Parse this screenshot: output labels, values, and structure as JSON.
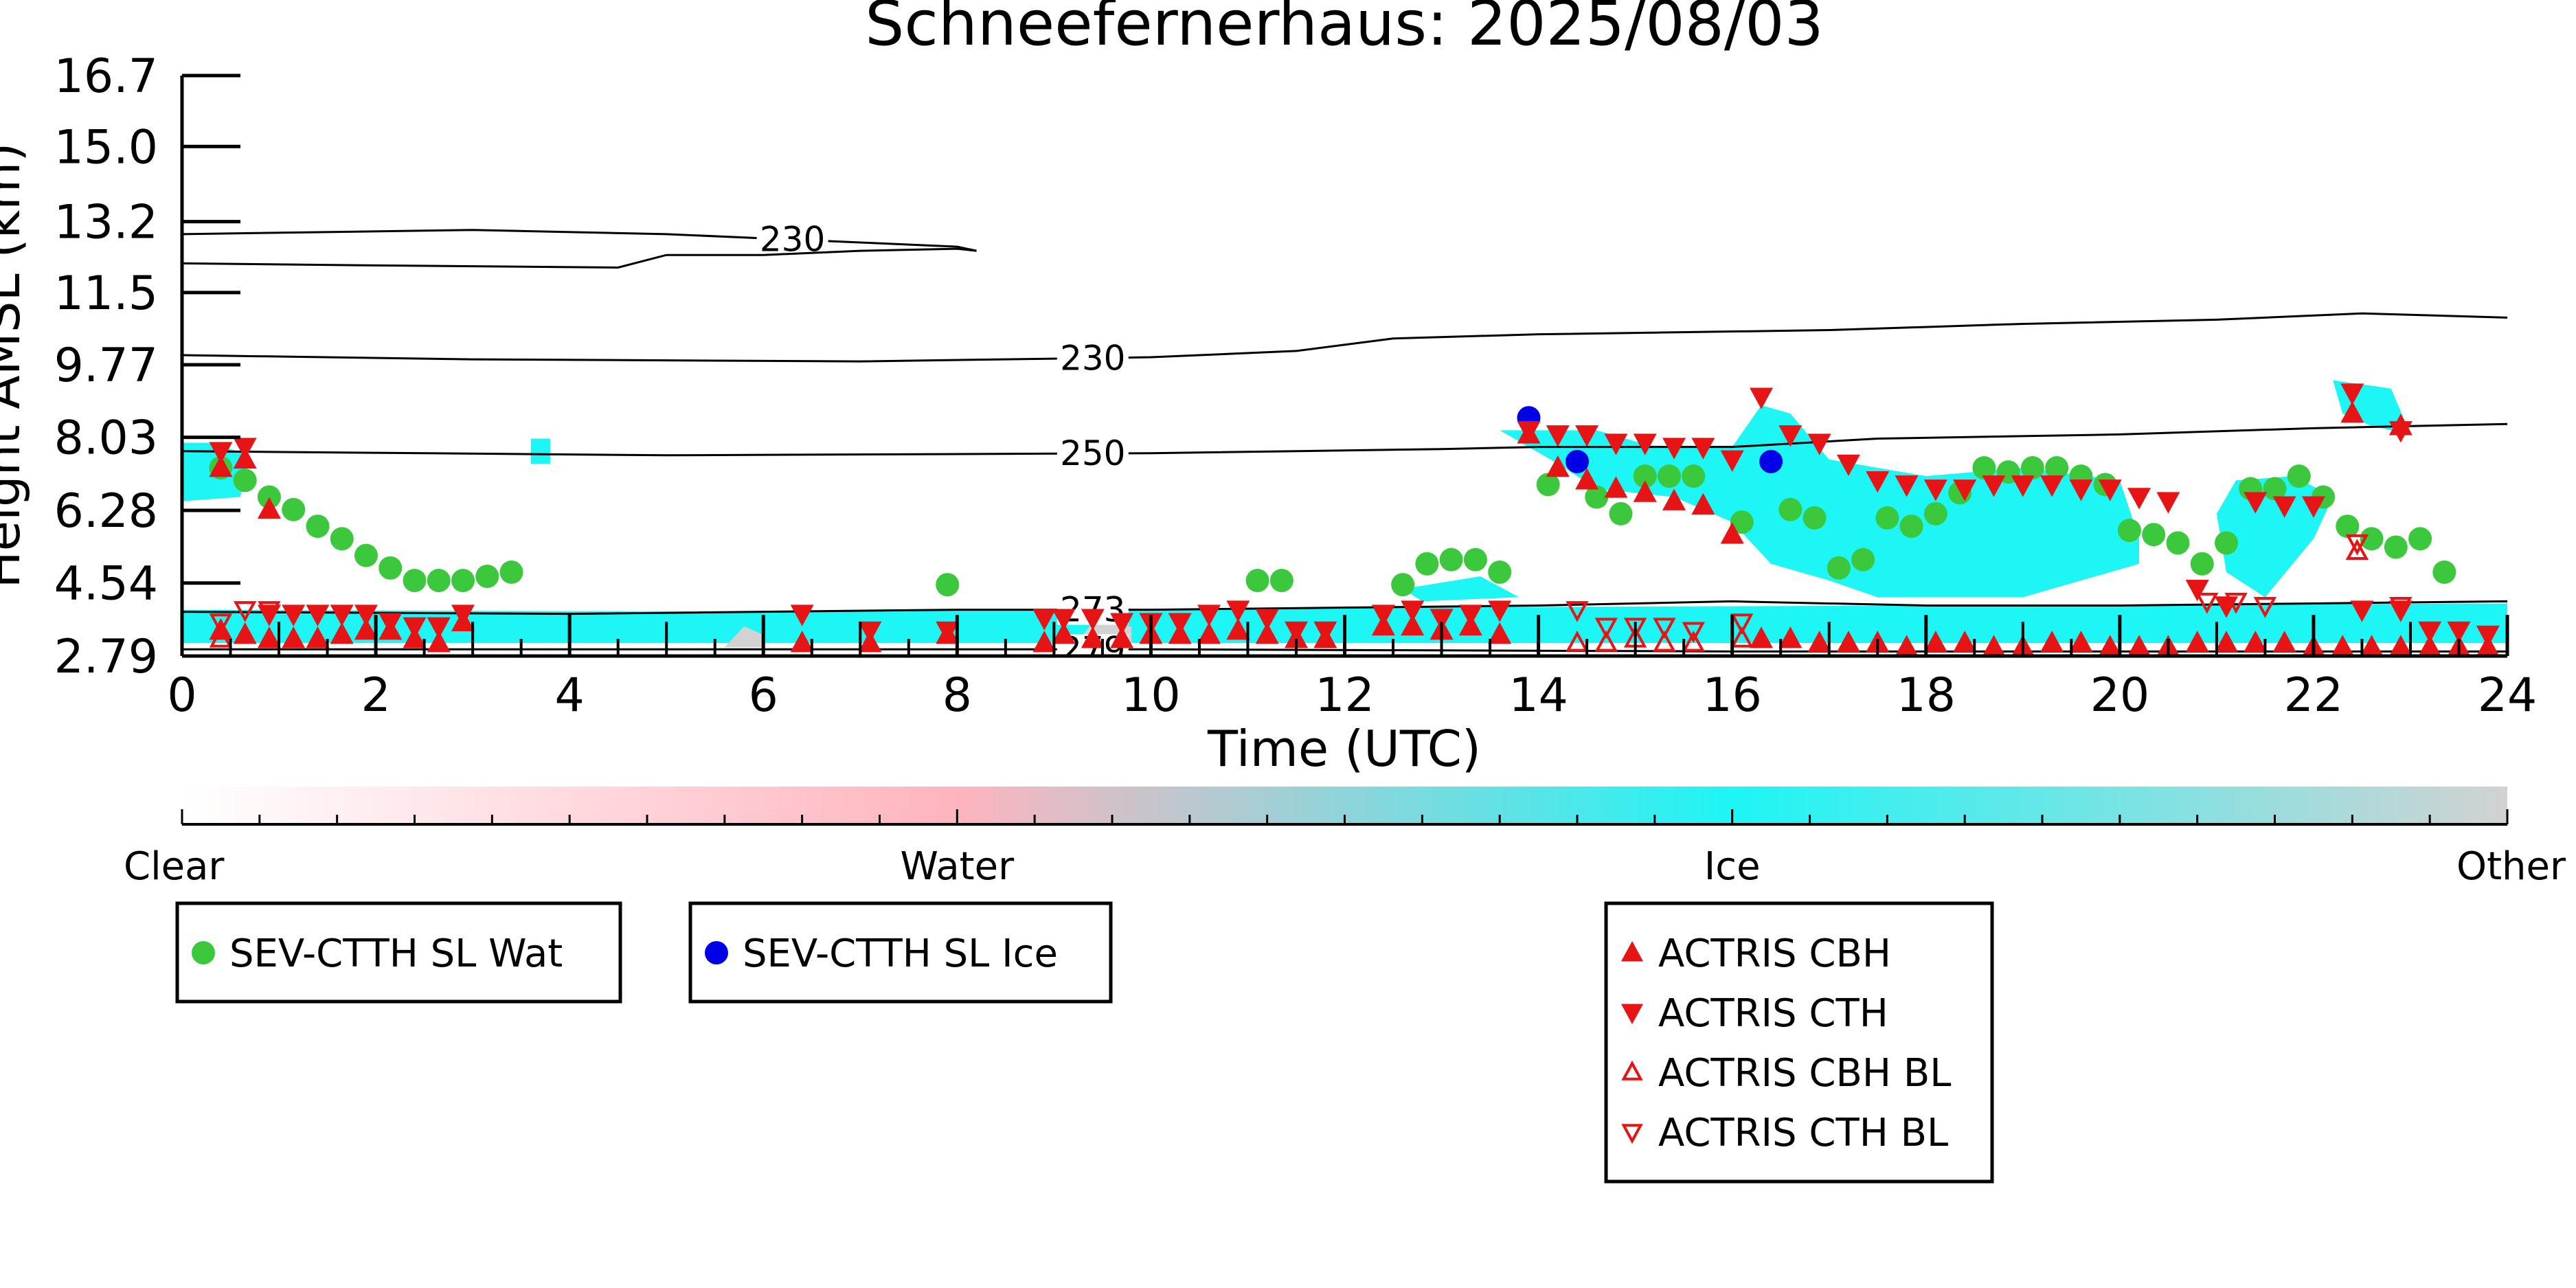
{
  "chart_data": {
    "type": "scatter",
    "title": "Schneefernerhaus: 2025/08/03",
    "xlabel": "Time (UTC)",
    "ylabel": "Height AMSL (km)",
    "xlim": [
      0,
      24
    ],
    "ylim": [
      2.79,
      16.7
    ],
    "x_ticks": [
      0,
      2,
      4,
      6,
      8,
      10,
      12,
      14,
      16,
      18,
      20,
      22,
      24
    ],
    "x_tick_labels": [
      "0",
      "2",
      "4",
      "6",
      "8",
      "10",
      "12",
      "14",
      "16",
      "18",
      "20",
      "22",
      "24"
    ],
    "y_ticks": [
      2.79,
      4.54,
      6.28,
      8.03,
      9.77,
      11.5,
      13.2,
      15.0,
      16.7
    ],
    "y_tick_labels": [
      "2.79",
      "4.54",
      "6.28",
      "8.03",
      "9.77",
      "11.5",
      "13.2",
      "15.0",
      "16.7"
    ],
    "colors": {
      "water_marker": "#3cc83c",
      "ice_marker": "#0000e6",
      "actris": "#e61414",
      "ice_fill": "#1ef5f5",
      "other_fill": "#d2d2d2",
      "water_fill": "#ffb4be",
      "contour": "#000000"
    },
    "colorbar": {
      "labels": [
        "Clear",
        "Water",
        "Ice",
        "Other"
      ],
      "stops": [
        "#ffffff",
        "#ffb4be",
        "#1ef5f5",
        "#d2d2d2"
      ]
    },
    "contours": [
      {
        "label": "230",
        "label_x": 6.3,
        "points": [
          [
            0,
            12.9
          ],
          [
            3,
            13.0
          ],
          [
            5,
            12.9
          ],
          [
            7,
            12.7
          ],
          [
            8,
            12.6
          ],
          [
            8.2,
            12.5
          ]
        ]
      },
      {
        "label": "",
        "points": [
          [
            0,
            12.2
          ],
          [
            2,
            12.15
          ],
          [
            4.5,
            12.1
          ],
          [
            5,
            12.4
          ],
          [
            6,
            12.4
          ],
          [
            7,
            12.5
          ],
          [
            8,
            12.55
          ],
          [
            8.2,
            12.5
          ]
        ]
      },
      {
        "label": "230",
        "label_x": 9.4,
        "points": [
          [
            0,
            10.0
          ],
          [
            3,
            9.9
          ],
          [
            7,
            9.85
          ],
          [
            10,
            9.95
          ],
          [
            11.5,
            10.1
          ],
          [
            12.5,
            10.4
          ],
          [
            14,
            10.5
          ],
          [
            17,
            10.6
          ],
          [
            19,
            10.75
          ],
          [
            21,
            10.85
          ],
          [
            22.5,
            11.0
          ],
          [
            24,
            10.9
          ]
        ]
      },
      {
        "label": "250",
        "label_x": 9.4,
        "points": [
          [
            0,
            7.7
          ],
          [
            5,
            7.6
          ],
          [
            10,
            7.65
          ],
          [
            13,
            7.75
          ],
          [
            14,
            7.8
          ],
          [
            16,
            7.8
          ],
          [
            17.5,
            8.0
          ],
          [
            20,
            8.1
          ],
          [
            22,
            8.25
          ],
          [
            24,
            8.35
          ]
        ]
      },
      {
        "label": "273",
        "label_x": 9.4,
        "points": [
          [
            0,
            3.85
          ],
          [
            4,
            3.8
          ],
          [
            8,
            3.9
          ],
          [
            10,
            3.9
          ],
          [
            12,
            3.95
          ],
          [
            14,
            4.0
          ],
          [
            16,
            4.1
          ],
          [
            18,
            4.0
          ],
          [
            20,
            4.0
          ],
          [
            22,
            4.05
          ],
          [
            24,
            4.1
          ]
        ]
      },
      {
        "label": "279",
        "label_x": 9.4,
        "points": [
          [
            0,
            2.95
          ],
          [
            6,
            2.95
          ],
          [
            10,
            2.95
          ],
          [
            16,
            2.9
          ],
          [
            24,
            2.9
          ]
        ]
      }
    ],
    "regions": [
      {
        "category": "Ice",
        "points": [
          [
            0,
            3.1
          ],
          [
            0,
            3.9
          ],
          [
            5.5,
            3.85
          ],
          [
            9,
            3.9
          ],
          [
            12,
            3.95
          ],
          [
            12,
            3.1
          ]
        ]
      },
      {
        "category": "Ice",
        "points": [
          [
            12,
            3.1
          ],
          [
            12,
            3.95
          ],
          [
            24,
            4.05
          ],
          [
            24,
            3.1
          ]
        ]
      },
      {
        "category": "Ice",
        "points": [
          [
            0,
            7.9
          ],
          [
            0.3,
            7.9
          ],
          [
            0.7,
            7.6
          ],
          [
            0.6,
            6.6
          ],
          [
            0,
            6.5
          ]
        ]
      },
      {
        "category": "Ice",
        "points": [
          [
            13.6,
            8.2
          ],
          [
            14.6,
            8.2
          ],
          [
            15.2,
            7.8
          ],
          [
            16,
            7.8
          ],
          [
            16.3,
            8.8
          ],
          [
            16.6,
            8.6
          ],
          [
            17,
            7.5
          ],
          [
            18,
            7.1
          ],
          [
            19,
            7.3
          ],
          [
            20,
            7.0
          ],
          [
            20.2,
            5.6
          ],
          [
            20.2,
            5.0
          ],
          [
            19,
            4.2
          ],
          [
            17.5,
            4.2
          ],
          [
            17,
            4.6
          ],
          [
            16.4,
            5.0
          ],
          [
            16,
            6.0
          ],
          [
            15.4,
            6.6
          ],
          [
            14.6,
            6.8
          ],
          [
            14.2,
            7.4
          ]
        ]
      },
      {
        "category": "Ice",
        "points": [
          [
            21.2,
            7.0
          ],
          [
            21.8,
            7.1
          ],
          [
            22.2,
            6.6
          ],
          [
            22.0,
            5.6
          ],
          [
            21.5,
            4.2
          ],
          [
            21.1,
            4.8
          ],
          [
            21.0,
            6.2
          ]
        ]
      },
      {
        "category": "Ice",
        "points": [
          [
            22.2,
            9.4
          ],
          [
            22.8,
            9.2
          ],
          [
            23.0,
            8.1
          ],
          [
            22.6,
            8.3
          ],
          [
            22.3,
            8.6
          ]
        ]
      },
      {
        "category": "Ice",
        "points": [
          [
            12.6,
            4.4
          ],
          [
            13.4,
            4.7
          ],
          [
            13.8,
            4.2
          ],
          [
            12.8,
            4.1
          ]
        ]
      },
      {
        "category": "Ice",
        "points": [
          [
            3.6,
            8.0
          ],
          [
            3.8,
            8.0
          ],
          [
            3.8,
            7.4
          ],
          [
            3.6,
            7.4
          ]
        ]
      },
      {
        "category": "Other",
        "points": [
          [
            5.6,
            3.0
          ],
          [
            5.8,
            3.5
          ],
          [
            6.0,
            3.3
          ],
          [
            6.0,
            3.0
          ]
        ]
      },
      {
        "category": "Other",
        "points": [
          [
            9.2,
            3.0
          ],
          [
            9.4,
            3.6
          ],
          [
            9.8,
            3.5
          ],
          [
            9.8,
            3.0
          ]
        ]
      }
    ],
    "series": [
      {
        "name": "SEV-CTTH SL Wat",
        "marker": "circle",
        "color": "#3cc83c",
        "x": [
          0.4,
          0.65,
          0.9,
          1.15,
          1.4,
          1.65,
          1.9,
          2.15,
          2.4,
          2.65,
          2.9,
          3.15,
          3.4,
          7.9,
          11.1,
          11.35,
          12.6,
          12.85,
          13.1,
          13.35,
          13.6,
          14.1,
          14.6,
          14.85,
          15.1,
          15.35,
          15.6,
          16.1,
          16.6,
          16.85,
          17.1,
          17.35,
          17.6,
          17.85,
          18.1,
          18.35,
          18.6,
          18.85,
          19.1,
          19.35,
          19.6,
          19.85,
          20.1,
          20.35,
          20.6,
          20.85,
          21.1,
          21.35,
          21.6,
          21.85,
          22.1,
          22.35,
          22.6,
          22.85,
          23.1,
          23.35
        ],
        "y": [
          7.3,
          7.0,
          6.6,
          6.3,
          5.9,
          5.6,
          5.2,
          4.9,
          4.6,
          4.6,
          4.6,
          4.7,
          4.8,
          4.5,
          4.6,
          4.6,
          4.5,
          5.0,
          5.1,
          5.1,
          4.8,
          6.9,
          6.6,
          6.2,
          7.1,
          7.1,
          7.1,
          6.0,
          6.3,
          6.1,
          4.9,
          5.1,
          6.1,
          5.9,
          6.2,
          6.7,
          7.3,
          7.2,
          7.3,
          7.3,
          7.1,
          6.9,
          5.8,
          5.7,
          5.5,
          5.0,
          5.5,
          6.8,
          6.8,
          7.1,
          6.6,
          5.9,
          5.6,
          5.4,
          5.6,
          4.8
        ]
      },
      {
        "name": "SEV-CTTH SL Ice",
        "marker": "circle",
        "color": "#0000e6",
        "x": [
          13.9,
          14.4,
          16.4
        ],
        "y": [
          8.5,
          7.45,
          7.45
        ]
      },
      {
        "name": "ACTRIS CBH",
        "marker": "triangle-up",
        "color": "#e61414",
        "x": [
          0.4,
          0.65,
          0.9,
          0.4,
          0.65,
          0.9,
          1.15,
          1.4,
          1.65,
          1.9,
          2.15,
          2.4,
          2.65,
          2.9,
          6.4,
          7.1,
          7.9,
          8.9,
          9.1,
          9.4,
          9.7,
          10.0,
          10.3,
          10.6,
          10.9,
          11.2,
          11.5,
          11.8,
          12.4,
          12.7,
          13.0,
          13.3,
          13.6,
          13.9,
          14.2,
          14.5,
          14.8,
          15.1,
          15.4,
          15.7,
          16.0,
          16.3,
          16.6,
          16.9,
          17.2,
          17.5,
          17.8,
          18.1,
          18.4,
          18.7,
          19.0,
          19.3,
          19.6,
          19.9,
          20.2,
          20.5,
          20.8,
          21.1,
          21.4,
          21.7,
          22.0,
          22.3,
          22.6,
          22.9,
          23.2,
          23.5,
          23.8,
          22.4,
          22.9
        ],
        "y": [
          7.3,
          7.5,
          6.3,
          3.4,
          3.3,
          3.2,
          3.2,
          3.2,
          3.3,
          3.4,
          3.4,
          3.2,
          3.1,
          3.6,
          3.1,
          3.1,
          3.3,
          3.1,
          3.3,
          3.2,
          3.2,
          3.3,
          3.3,
          3.3,
          3.4,
          3.3,
          3.2,
          3.2,
          3.5,
          3.5,
          3.4,
          3.5,
          3.3,
          8.1,
          7.3,
          7.0,
          6.8,
          6.7,
          6.5,
          6.4,
          5.7,
          3.2,
          3.2,
          3.1,
          3.1,
          3.1,
          3.0,
          3.1,
          3.1,
          3.0,
          3.0,
          3.1,
          3.1,
          3.0,
          3.0,
          3.0,
          3.1,
          3.1,
          3.1,
          3.1,
          3.0,
          3.0,
          3.0,
          3.0,
          3.0,
          3.0,
          3.0,
          8.6,
          8.3
        ]
      },
      {
        "name": "ACTRIS CTH",
        "marker": "triangle-down",
        "color": "#e61414",
        "x": [
          0.4,
          0.65,
          0.9,
          1.15,
          1.4,
          1.65,
          1.9,
          2.15,
          2.4,
          2.65,
          2.9,
          6.4,
          7.1,
          7.9,
          8.9,
          9.1,
          9.4,
          9.7,
          10.0,
          10.3,
          10.6,
          10.9,
          11.2,
          11.5,
          11.8,
          12.4,
          12.7,
          13.0,
          13.3,
          13.6,
          13.9,
          14.2,
          14.5,
          14.8,
          15.1,
          15.4,
          15.7,
          16.0,
          16.3,
          16.6,
          16.9,
          17.2,
          17.5,
          17.8,
          18.1,
          18.4,
          18.7,
          19.0,
          19.3,
          19.6,
          19.9,
          20.2,
          20.5,
          20.8,
          21.1,
          21.4,
          21.7,
          22.0,
          22.4,
          22.9,
          22.5,
          22.9,
          23.2,
          23.5,
          23.8
        ],
        "y": [
          7.7,
          7.8,
          3.8,
          3.8,
          3.8,
          3.8,
          3.8,
          3.6,
          3.5,
          3.5,
          3.8,
          3.8,
          3.4,
          3.4,
          3.7,
          3.7,
          3.7,
          3.6,
          3.6,
          3.6,
          3.8,
          3.9,
          3.7,
          3.4,
          3.4,
          3.8,
          3.9,
          3.7,
          3.8,
          3.9,
          8.2,
          8.1,
          8.1,
          7.9,
          7.9,
          7.8,
          7.8,
          7.5,
          9.0,
          8.1,
          7.9,
          7.4,
          7.0,
          6.9,
          6.8,
          6.8,
          6.9,
          6.9,
          6.9,
          6.8,
          6.8,
          6.6,
          6.5,
          4.4,
          4.0,
          6.5,
          6.4,
          6.4,
          9.1,
          8.2,
          3.9,
          3.9,
          3.4,
          3.4,
          3.3
        ]
      },
      {
        "name": "ACTRIS CBH BL",
        "marker": "triangle-up-open",
        "color": "#e61414",
        "x": [
          0.4,
          14.4,
          14.7,
          15.0,
          15.3,
          15.6,
          16.1,
          22.45
        ],
        "y": [
          3.2,
          3.1,
          3.1,
          3.2,
          3.1,
          3.1,
          3.2,
          5.3
        ]
      },
      {
        "name": "ACTRIS CTH BL",
        "marker": "triangle-down-open",
        "color": "#e61414",
        "x": [
          0.4,
          0.65,
          0.9,
          14.4,
          14.7,
          15.0,
          15.3,
          15.6,
          16.1,
          20.9,
          21.2,
          21.5,
          22.45,
          22.9
        ],
        "y": [
          3.6,
          3.9,
          3.9,
          3.9,
          3.5,
          3.5,
          3.5,
          3.4,
          3.6,
          4.1,
          4.1,
          4.0,
          5.5,
          4.0
        ]
      }
    ],
    "legends": [
      {
        "entries": [
          "SEV-CTTH SL Wat"
        ]
      },
      {
        "entries": [
          "SEV-CTTH SL Ice"
        ]
      },
      {
        "entries": [
          "ACTRIS CBH",
          "ACTRIS CTH",
          "ACTRIS CBH BL",
          "ACTRIS CTH BL"
        ]
      }
    ]
  }
}
